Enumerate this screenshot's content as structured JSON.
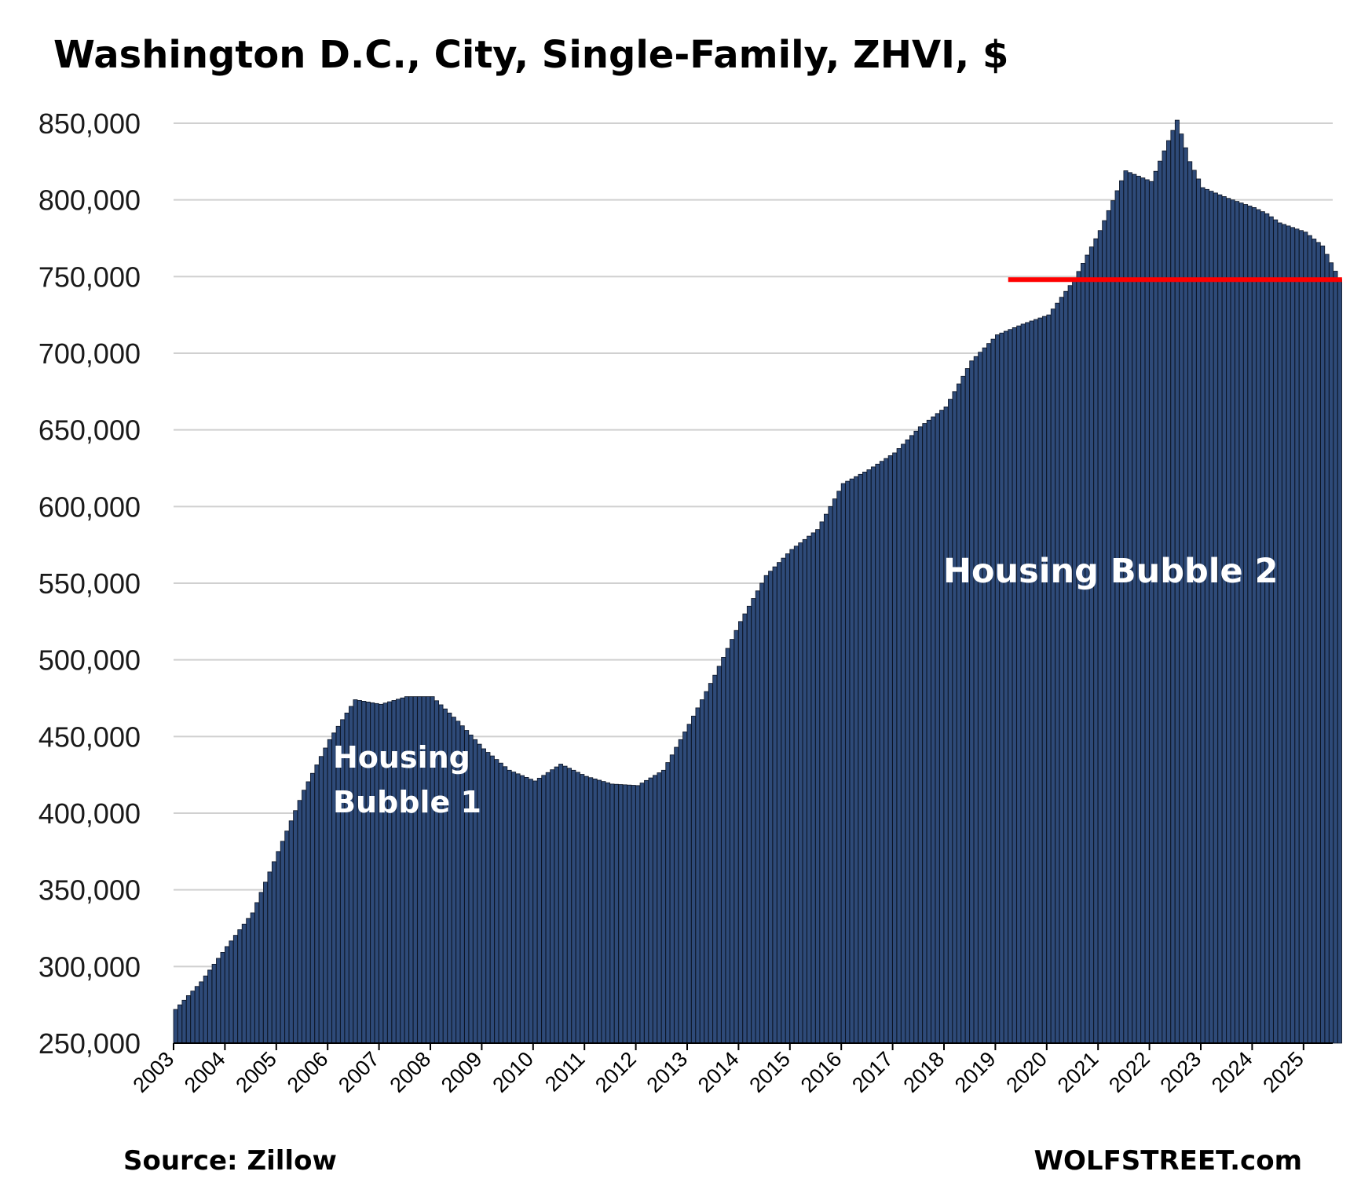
{
  "chart_data": {
    "type": "bar",
    "title": "Washington D.C., City, Single-Family, ZHVI, $",
    "source": "Source: Zillow",
    "brand": "WOLFSTREET.com",
    "annotations": [
      "Housing Bubble 1",
      "Housing Bubble 2"
    ],
    "annotation_lines": [
      [
        "Housing",
        "Bubble 1"
      ],
      [
        "Housing Bubble 2"
      ]
    ],
    "reference_line": {
      "value": 748000,
      "x_start": "2019-04",
      "x_end": "2025-10",
      "color": "#ff0000"
    },
    "ylim": [
      250000,
      850000
    ],
    "yticks": [
      250000,
      300000,
      350000,
      400000,
      450000,
      500000,
      550000,
      600000,
      650000,
      700000,
      750000,
      800000,
      850000
    ],
    "ytick_labels": [
      "250,000",
      "300,000",
      "350,000",
      "400,000",
      "450,000",
      "500,000",
      "550,000",
      "600,000",
      "650,000",
      "700,000",
      "750,000",
      "800,000",
      "850,000"
    ],
    "xtick_labels": [
      "2003",
      "2004",
      "2005",
      "2006",
      "2007",
      "2008",
      "2009",
      "2010",
      "2011",
      "2012",
      "2013",
      "2014",
      "2015",
      "2016",
      "2017",
      "2018",
      "2019",
      "2020",
      "2021",
      "2022",
      "2023",
      "2024",
      "2025"
    ],
    "x_start": "2003-01",
    "x_end": "2025-09",
    "grid": true,
    "bar_color": "#2e4a78",
    "anchors": [
      [
        "2003-01",
        272000
      ],
      [
        "2003-07",
        290000
      ],
      [
        "2004-01",
        313000
      ],
      [
        "2004-07",
        335000
      ],
      [
        "2005-01",
        375000
      ],
      [
        "2005-07",
        415000
      ],
      [
        "2006-01",
        448000
      ],
      [
        "2006-07",
        474000
      ],
      [
        "2007-01",
        471000
      ],
      [
        "2007-07",
        476000
      ],
      [
        "2008-01",
        476000
      ],
      [
        "2008-07",
        460000
      ],
      [
        "2009-01",
        442000
      ],
      [
        "2009-07",
        428000
      ],
      [
        "2010-01",
        421000
      ],
      [
        "2010-07",
        432000
      ],
      [
        "2011-01",
        424000
      ],
      [
        "2011-07",
        419000
      ],
      [
        "2012-01",
        418000
      ],
      [
        "2012-07",
        428000
      ],
      [
        "2013-01",
        458000
      ],
      [
        "2013-07",
        490000
      ],
      [
        "2014-01",
        525000
      ],
      [
        "2014-07",
        555000
      ],
      [
        "2015-01",
        572000
      ],
      [
        "2015-07",
        585000
      ],
      [
        "2016-01",
        615000
      ],
      [
        "2016-07",
        624000
      ],
      [
        "2017-01",
        635000
      ],
      [
        "2017-07",
        652000
      ],
      [
        "2018-01",
        665000
      ],
      [
        "2018-07",
        695000
      ],
      [
        "2019-01",
        712000
      ],
      [
        "2019-07",
        719000
      ],
      [
        "2020-01",
        725000
      ],
      [
        "2020-07",
        748000
      ],
      [
        "2021-01",
        780000
      ],
      [
        "2021-07",
        819000
      ],
      [
        "2022-01",
        812000
      ],
      [
        "2022-04",
        832000
      ],
      [
        "2022-07",
        852000
      ],
      [
        "2022-10",
        825000
      ],
      [
        "2023-01",
        808000
      ],
      [
        "2023-07",
        801000
      ],
      [
        "2024-01",
        795000
      ],
      [
        "2024-04",
        791000
      ],
      [
        "2024-07",
        785000
      ],
      [
        "2025-01",
        779000
      ],
      [
        "2025-05",
        770000
      ],
      [
        "2025-09",
        748000
      ]
    ]
  }
}
